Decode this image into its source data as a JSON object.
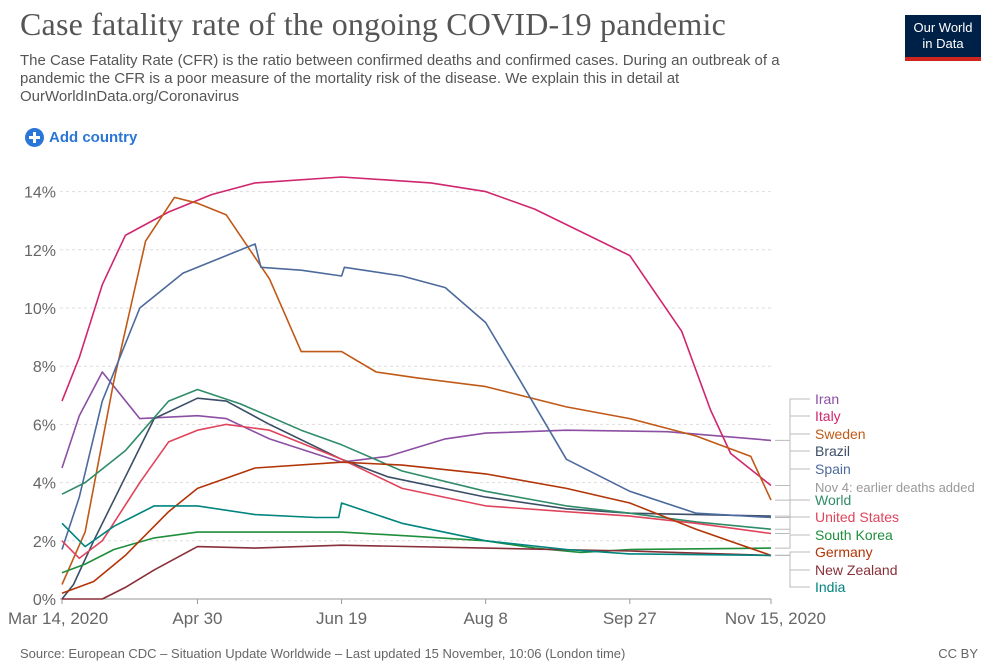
{
  "header": {
    "title": "Case fatality rate of the ongoing COVID-19 pandemic",
    "subtitle": "The Case Fatality Rate (CFR) is the ratio between confirmed deaths and confirmed cases. During an outbreak of a pandemic the CFR is a poor measure of the mortality risk of the disease. We explain this in detail at OurWorldInData.org/Coronavirus",
    "logo_line1": "Our World",
    "logo_line2": "in Data"
  },
  "controls": {
    "add_country_label": "Add country"
  },
  "footer": {
    "source": "Source: European CDC – Situation Update Worldwide – Last updated 15 November, 10:06 (London time)",
    "license": "CC BY"
  },
  "chart_data": {
    "type": "line",
    "title": "Case fatality rate of the ongoing COVID-19 pandemic",
    "xlabel": "",
    "ylabel": "",
    "x_start": "2020-03-14",
    "x_end": "2020-11-15",
    "x_ticks": [
      {
        "date": "2020-03-14",
        "label": "Mar 14, 2020"
      },
      {
        "date": "2020-04-30",
        "label": "Apr 30"
      },
      {
        "date": "2020-06-19",
        "label": "Jun 19"
      },
      {
        "date": "2020-08-08",
        "label": "Aug 8"
      },
      {
        "date": "2020-09-27",
        "label": "Sep 27"
      },
      {
        "date": "2020-11-15",
        "label": "Nov 15, 2020"
      }
    ],
    "ylim": [
      0,
      14.5
    ],
    "y_ticks": [
      0,
      2,
      4,
      6,
      8,
      10,
      12,
      14
    ],
    "y_tick_labels": [
      "0%",
      "2%",
      "4%",
      "6%",
      "8%",
      "10%",
      "12%",
      "14%"
    ],
    "grid": "horizontal dashed",
    "legend": "right",
    "annotation": "Nov 4: earlier deaths added",
    "series": [
      {
        "name": "Iran",
        "color": "#8c4fa3",
        "points": [
          [
            "2020-03-14",
            4.5
          ],
          [
            "2020-03-20",
            6.3
          ],
          [
            "2020-03-28",
            7.8
          ],
          [
            "2020-04-10",
            6.2
          ],
          [
            "2020-04-30",
            6.3
          ],
          [
            "2020-05-10",
            6.2
          ],
          [
            "2020-05-25",
            5.5
          ],
          [
            "2020-06-19",
            4.7
          ],
          [
            "2020-07-05",
            4.9
          ],
          [
            "2020-07-25",
            5.5
          ],
          [
            "2020-08-08",
            5.7
          ],
          [
            "2020-09-05",
            5.8
          ],
          [
            "2020-10-10",
            5.75
          ],
          [
            "2020-11-15",
            5.45
          ]
        ]
      },
      {
        "name": "Italy",
        "color": "#d0266d",
        "points": [
          [
            "2020-03-14",
            6.8
          ],
          [
            "2020-03-20",
            8.3
          ],
          [
            "2020-03-28",
            10.8
          ],
          [
            "2020-04-05",
            12.5
          ],
          [
            "2020-04-20",
            13.3
          ],
          [
            "2020-05-05",
            13.9
          ],
          [
            "2020-05-20",
            14.3
          ],
          [
            "2020-06-19",
            14.5
          ],
          [
            "2020-07-20",
            14.3
          ],
          [
            "2020-08-08",
            14.0
          ],
          [
            "2020-08-25",
            13.4
          ],
          [
            "2020-09-27",
            11.8
          ],
          [
            "2020-10-15",
            9.2
          ],
          [
            "2020-10-25",
            6.5
          ],
          [
            "2020-11-01",
            5.0
          ],
          [
            "2020-11-15",
            3.9
          ]
        ]
      },
      {
        "name": "Sweden",
        "color": "#c05917",
        "points": [
          [
            "2020-03-14",
            0.5
          ],
          [
            "2020-03-22",
            2.3
          ],
          [
            "2020-04-01",
            7.5
          ],
          [
            "2020-04-12",
            12.3
          ],
          [
            "2020-04-22",
            13.8
          ],
          [
            "2020-04-30",
            13.6
          ],
          [
            "2020-05-10",
            13.2
          ],
          [
            "2020-05-25",
            11.0
          ],
          [
            "2020-06-05",
            8.5
          ],
          [
            "2020-06-19",
            8.5
          ],
          [
            "2020-07-01",
            7.8
          ],
          [
            "2020-07-15",
            7.6
          ],
          [
            "2020-08-08",
            7.3
          ],
          [
            "2020-09-05",
            6.6
          ],
          [
            "2020-09-27",
            6.2
          ],
          [
            "2020-10-20",
            5.6
          ],
          [
            "2020-11-08",
            4.9
          ],
          [
            "2020-11-15",
            3.4
          ]
        ]
      },
      {
        "name": "Brazil",
        "color": "#3c4e66",
        "points": [
          [
            "2020-03-14",
            0.0
          ],
          [
            "2020-03-18",
            0.5
          ],
          [
            "2020-03-25",
            2.0
          ],
          [
            "2020-04-05",
            4.2
          ],
          [
            "2020-04-15",
            6.2
          ],
          [
            "2020-04-30",
            6.9
          ],
          [
            "2020-05-10",
            6.8
          ],
          [
            "2020-05-25",
            6.0
          ],
          [
            "2020-06-19",
            4.8
          ],
          [
            "2020-07-05",
            4.2
          ],
          [
            "2020-08-08",
            3.5
          ],
          [
            "2020-09-05",
            3.1
          ],
          [
            "2020-09-27",
            2.95
          ],
          [
            "2020-11-15",
            2.85
          ]
        ]
      },
      {
        "name": "Spain",
        "color": "#4c6a9c",
        "points": [
          [
            "2020-03-14",
            1.7
          ],
          [
            "2020-03-20",
            3.5
          ],
          [
            "2020-03-28",
            6.8
          ],
          [
            "2020-04-10",
            10.0
          ],
          [
            "2020-04-25",
            11.2
          ],
          [
            "2020-05-10",
            11.8
          ],
          [
            "2020-05-20",
            12.2
          ],
          [
            "2020-05-22",
            11.4
          ],
          [
            "2020-06-05",
            11.3
          ],
          [
            "2020-06-19",
            11.1
          ],
          [
            "2020-06-20",
            11.4
          ],
          [
            "2020-07-10",
            11.1
          ],
          [
            "2020-07-25",
            10.7
          ],
          [
            "2020-08-08",
            9.5
          ],
          [
            "2020-08-20",
            7.5
          ],
          [
            "2020-09-05",
            4.8
          ],
          [
            "2020-09-27",
            3.7
          ],
          [
            "2020-10-20",
            2.95
          ],
          [
            "2020-11-15",
            2.8
          ]
        ]
      },
      {
        "name": "World",
        "color": "#2f8c68",
        "points": [
          [
            "2020-03-14",
            3.6
          ],
          [
            "2020-03-22",
            4.0
          ],
          [
            "2020-04-05",
            5.1
          ],
          [
            "2020-04-20",
            6.8
          ],
          [
            "2020-04-30",
            7.2
          ],
          [
            "2020-05-15",
            6.7
          ],
          [
            "2020-06-05",
            5.8
          ],
          [
            "2020-06-19",
            5.3
          ],
          [
            "2020-07-10",
            4.4
          ],
          [
            "2020-08-08",
            3.7
          ],
          [
            "2020-09-05",
            3.2
          ],
          [
            "2020-09-27",
            2.95
          ],
          [
            "2020-10-20",
            2.65
          ],
          [
            "2020-11-15",
            2.4
          ]
        ]
      },
      {
        "name": "United States",
        "color": "#e0445c",
        "points": [
          [
            "2020-03-14",
            2.0
          ],
          [
            "2020-03-20",
            1.4
          ],
          [
            "2020-03-28",
            2.0
          ],
          [
            "2020-04-10",
            4.0
          ],
          [
            "2020-04-20",
            5.4
          ],
          [
            "2020-04-30",
            5.8
          ],
          [
            "2020-05-10",
            6.0
          ],
          [
            "2020-05-25",
            5.8
          ],
          [
            "2020-06-19",
            4.8
          ],
          [
            "2020-07-10",
            3.8
          ],
          [
            "2020-08-08",
            3.2
          ],
          [
            "2020-09-05",
            3.0
          ],
          [
            "2020-09-27",
            2.85
          ],
          [
            "2020-10-20",
            2.6
          ],
          [
            "2020-11-15",
            2.25
          ]
        ]
      },
      {
        "name": "South Korea",
        "color": "#1f8f3c",
        "points": [
          [
            "2020-03-14",
            0.9
          ],
          [
            "2020-03-22",
            1.2
          ],
          [
            "2020-04-01",
            1.7
          ],
          [
            "2020-04-15",
            2.1
          ],
          [
            "2020-04-30",
            2.3
          ],
          [
            "2020-06-19",
            2.3
          ],
          [
            "2020-07-15",
            2.15
          ],
          [
            "2020-08-08",
            2.0
          ],
          [
            "2020-08-25",
            1.75
          ],
          [
            "2020-09-10",
            1.6
          ],
          [
            "2020-09-27",
            1.7
          ],
          [
            "2020-11-15",
            1.75
          ]
        ]
      },
      {
        "name": "Germany",
        "color": "#b13507",
        "points": [
          [
            "2020-03-14",
            0.2
          ],
          [
            "2020-03-25",
            0.6
          ],
          [
            "2020-04-05",
            1.5
          ],
          [
            "2020-04-20",
            3.0
          ],
          [
            "2020-04-30",
            3.8
          ],
          [
            "2020-05-20",
            4.5
          ],
          [
            "2020-06-19",
            4.7
          ],
          [
            "2020-07-10",
            4.6
          ],
          [
            "2020-08-08",
            4.3
          ],
          [
            "2020-09-05",
            3.8
          ],
          [
            "2020-09-27",
            3.3
          ],
          [
            "2020-10-20",
            2.4
          ],
          [
            "2020-11-15",
            1.5
          ]
        ]
      },
      {
        "name": "New Zealand",
        "color": "#883039",
        "points": [
          [
            "2020-03-14",
            0.0
          ],
          [
            "2020-03-28",
            0.0
          ],
          [
            "2020-04-05",
            0.4
          ],
          [
            "2020-04-15",
            1.0
          ],
          [
            "2020-04-30",
            1.8
          ],
          [
            "2020-05-20",
            1.75
          ],
          [
            "2020-06-19",
            1.85
          ],
          [
            "2020-08-08",
            1.75
          ],
          [
            "2020-09-27",
            1.65
          ],
          [
            "2020-11-15",
            1.5
          ]
        ]
      },
      {
        "name": "India",
        "color": "#00847e",
        "points": [
          [
            "2020-03-14",
            2.6
          ],
          [
            "2020-03-22",
            1.8
          ],
          [
            "2020-04-01",
            2.5
          ],
          [
            "2020-04-15",
            3.2
          ],
          [
            "2020-04-30",
            3.2
          ],
          [
            "2020-05-20",
            2.9
          ],
          [
            "2020-06-10",
            2.8
          ],
          [
            "2020-06-18",
            2.8
          ],
          [
            "2020-06-19",
            3.3
          ],
          [
            "2020-07-10",
            2.6
          ],
          [
            "2020-08-08",
            2.0
          ],
          [
            "2020-09-05",
            1.7
          ],
          [
            "2020-09-27",
            1.55
          ],
          [
            "2020-11-15",
            1.5
          ]
        ]
      }
    ]
  }
}
